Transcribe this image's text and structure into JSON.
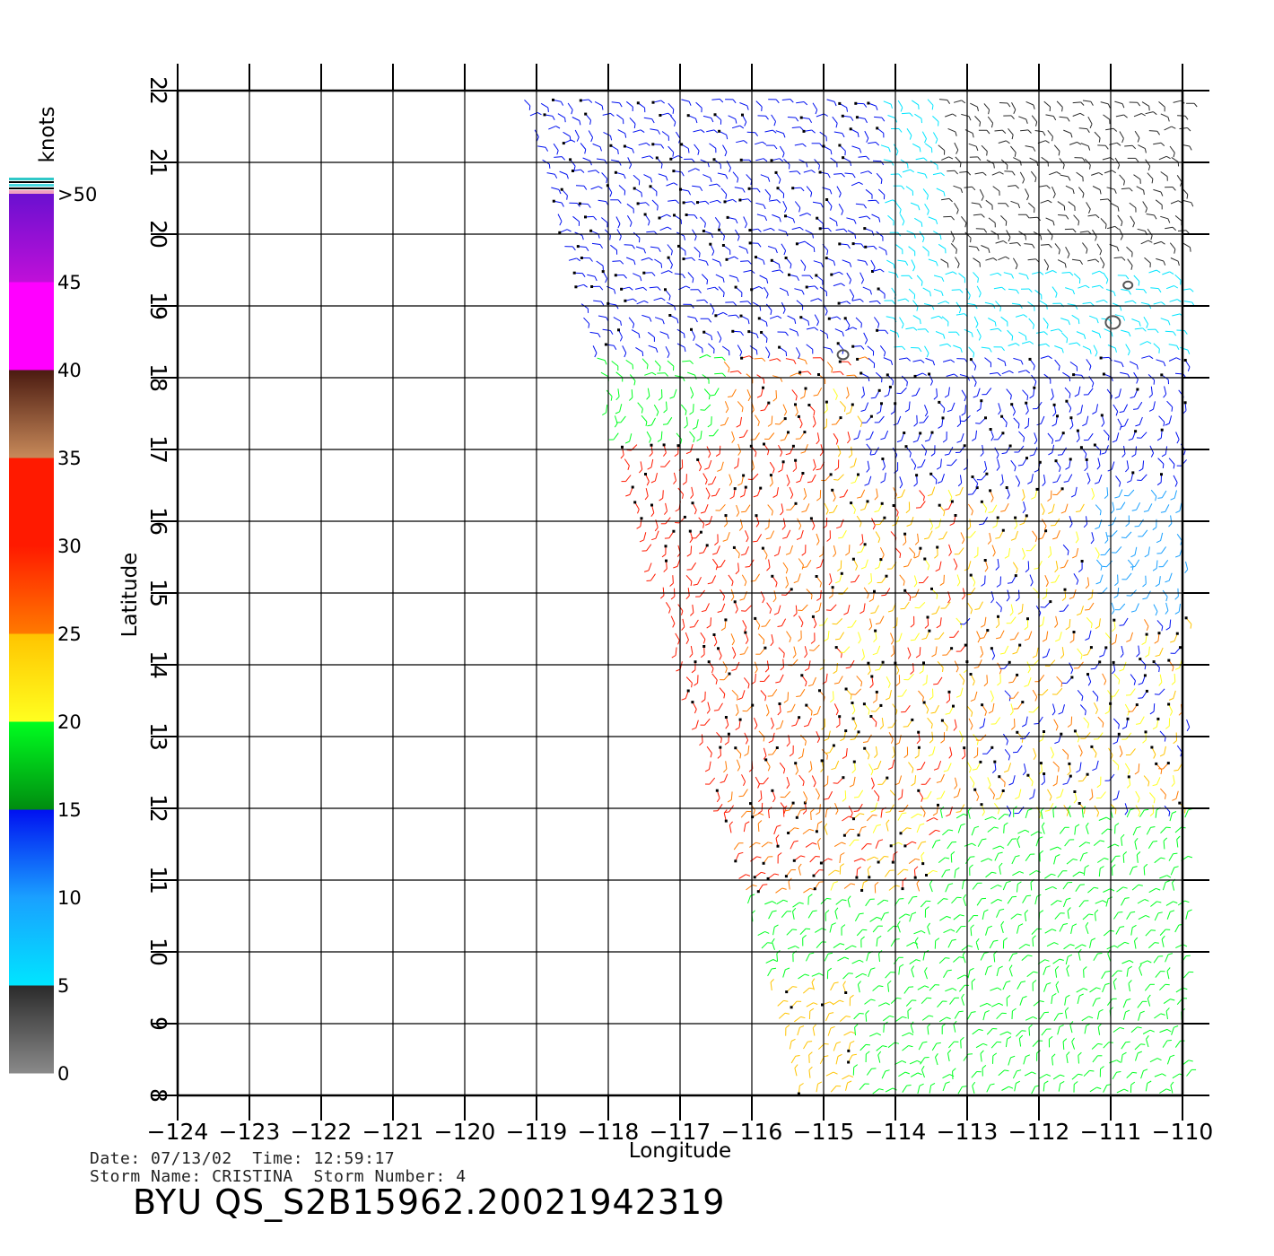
{
  "map": {
    "title": "BYU QS_S2B15962.20021942319",
    "x_axis_label": "Longitude",
    "y_axis_label": "Latitude",
    "longitude_ticks": [
      -124,
      -123,
      -122,
      -121,
      -120,
      -119,
      -118,
      -117,
      -116,
      -115,
      -114,
      -113,
      -112,
      -111,
      -110
    ],
    "latitude_ticks": [
      8,
      9,
      10,
      11,
      12,
      13,
      14,
      15,
      16,
      17,
      18,
      19,
      20,
      21,
      22
    ],
    "lon_range": [
      -124,
      -110
    ],
    "lat_range": [
      8,
      22
    ],
    "swath": "wind barbs cover only the eastern part of the map; western edge runs diagonally from about -119.3 at 22N to about -115.4 at 8N",
    "wind_regions": "red and orange barbs (25-35 knots) around 11-17N, 117-113W; yellow 20-25 knots nearby; green 15-20 knots south of 11N; blue and cyan 5-15 knots north of 18N; black under 5 knots near 20-21N, 113-110W"
  },
  "footer": {
    "date_label": "Date:",
    "date": "07/13/02",
    "time_label": "Time:",
    "time": "12:59:17",
    "storm_name_label": "Storm Name:",
    "storm_name": "CRISTINA",
    "storm_number_label": "Storm Number:",
    "storm_number": "4"
  },
  "colorbar": {
    "unit": "knots",
    "labels": [
      "0",
      "5",
      "10",
      "15",
      "20",
      "25",
      "30",
      "35",
      "40",
      "45",
      ">50"
    ],
    "colors": {
      "gray_dark": "#2a2a2a",
      "gray_light": "#8a8a8a",
      "cyan": "#00e5ff",
      "blue_light": "#1aa0ff",
      "blue": "#0010f0",
      "green_dark": "#008c10",
      "green": "#00ff20",
      "yellow": "#ffff20",
      "amber": "#ffc400",
      "orange": "#ff7a00",
      "red": "#ff1a00",
      "brown_light": "#c88a5a",
      "brown_dark": "#4a1a10",
      "magenta": "#ff00ff",
      "purple": "#6a10d0"
    }
  }
}
